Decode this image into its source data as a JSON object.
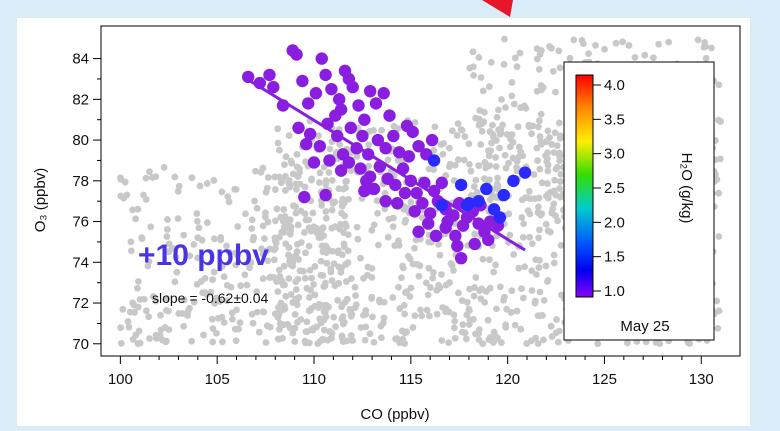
{
  "chart_data": {
    "type": "scatter",
    "xlabel": "CO (ppbv)",
    "ylabel": "O₃ (ppbv)",
    "xlim": [
      99,
      132
    ],
    "ylim": [
      69.4,
      85.6
    ],
    "xticks": [
      100,
      105,
      110,
      115,
      120,
      125,
      130
    ],
    "yticks": [
      70,
      72,
      74,
      76,
      78,
      80,
      82,
      84
    ],
    "grid": false,
    "annotations": {
      "increment": "+10 ppbv",
      "slope": "slope = -0.62±0.04",
      "date": "May 25"
    },
    "colorbar": {
      "label": "H₂O (g/kg)",
      "ticks": [
        "4.0",
        "3.5",
        "3.0",
        "2.5",
        "2.0",
        "1.5",
        "1.0"
      ],
      "range": [
        1.0,
        4.0
      ],
      "colors": [
        "#ff0000",
        "#ff8800",
        "#ffee00",
        "#33dd00",
        "#00cccc",
        "#0055ff",
        "#0000ee",
        "#8800ff"
      ]
    },
    "fit_line": {
      "color": "#8a1ee0",
      "points": [
        [
          106.7,
          82.9
        ],
        [
          120.9,
          74.6
        ]
      ]
    },
    "background_series": {
      "name": "",
      "color": "#c8c8c8",
      "description_level": "dense cloud of gray points",
      "regions": [
        {
          "x": [
            100,
            112
          ],
          "y": [
            70,
            79
          ]
        },
        {
          "x": [
            108,
            131
          ],
          "y": [
            70,
            81
          ]
        },
        {
          "x": [
            118,
            131
          ],
          "y": [
            77,
            85
          ]
        }
      ]
    },
    "series": [
      {
        "name": "",
        "h2o_gkg": 1.05,
        "color": "#8a1ee0",
        "points": [
          [
            106.6,
            83.1
          ],
          [
            107.2,
            82.8
          ],
          [
            107.7,
            83.2
          ],
          [
            107.9,
            82.6
          ],
          [
            108.4,
            81.7
          ],
          [
            108.9,
            84.4
          ],
          [
            109.1,
            84.2
          ],
          [
            109.4,
            82.9
          ],
          [
            109.7,
            81.8
          ],
          [
            110.1,
            82.3
          ],
          [
            110.4,
            84.0
          ],
          [
            110.6,
            83.2
          ],
          [
            110.9,
            82.5
          ],
          [
            111.1,
            81.2
          ],
          [
            111.3,
            82.0
          ],
          [
            111.6,
            83.4
          ],
          [
            111.8,
            83.0
          ],
          [
            112.0,
            82.6
          ],
          [
            111.4,
            81.5
          ],
          [
            112.3,
            81.7
          ],
          [
            112.6,
            81.0
          ],
          [
            112.9,
            82.4
          ],
          [
            113.2,
            81.8
          ],
          [
            113.6,
            82.3
          ],
          [
            113.9,
            81.2
          ],
          [
            109.2,
            80.6
          ],
          [
            109.8,
            80.3
          ],
          [
            110.3,
            79.7
          ],
          [
            110.7,
            80.8
          ],
          [
            111.2,
            80.2
          ],
          [
            111.5,
            79.3
          ],
          [
            111.9,
            80.6
          ],
          [
            112.2,
            79.6
          ],
          [
            112.5,
            80.2
          ],
          [
            112.8,
            79.3
          ],
          [
            113.3,
            80.0
          ],
          [
            113.7,
            79.6
          ],
          [
            114.1,
            80.2
          ],
          [
            114.4,
            79.4
          ],
          [
            114.8,
            80.7
          ],
          [
            115.1,
            80.4
          ],
          [
            115.4,
            79.7
          ],
          [
            115.8,
            79.3
          ],
          [
            116.1,
            80.0
          ],
          [
            109.6,
            79.8
          ],
          [
            110.0,
            78.9
          ],
          [
            110.8,
            79.0
          ],
          [
            111.4,
            78.5
          ],
          [
            111.8,
            78.9
          ],
          [
            112.4,
            78.6
          ],
          [
            112.9,
            78.2
          ],
          [
            113.4,
            78.7
          ],
          [
            113.8,
            78.1
          ],
          [
            114.2,
            77.8
          ],
          [
            114.6,
            78.6
          ],
          [
            115.0,
            78.0
          ],
          [
            115.3,
            77.4
          ],
          [
            115.7,
            77.9
          ],
          [
            116.2,
            77.5
          ],
          [
            116.6,
            77.9
          ],
          [
            109.5,
            77.2
          ],
          [
            110.6,
            77.3
          ],
          [
            112.6,
            77.5
          ],
          [
            113.1,
            77.6
          ],
          [
            113.7,
            77.0
          ],
          [
            114.3,
            76.9
          ],
          [
            114.7,
            77.4
          ],
          [
            115.2,
            76.5
          ],
          [
            115.6,
            76.9
          ],
          [
            116.0,
            76.4
          ],
          [
            116.4,
            77.0
          ],
          [
            116.8,
            76.6
          ],
          [
            117.2,
            76.3
          ],
          [
            117.5,
            76.9
          ],
          [
            117.9,
            76.2
          ],
          [
            118.2,
            76.5
          ],
          [
            118.5,
            75.9
          ],
          [
            118.8,
            75.5
          ],
          [
            119.1,
            76.0
          ],
          [
            119.5,
            75.8
          ],
          [
            115.4,
            75.5
          ],
          [
            115.9,
            75.9
          ],
          [
            116.3,
            75.3
          ],
          [
            116.8,
            75.7
          ],
          [
            117.3,
            75.3
          ],
          [
            117.7,
            75.8
          ],
          [
            117.4,
            74.8
          ],
          [
            117.6,
            74.2
          ],
          [
            118.3,
            74.9
          ],
          [
            119.0,
            75.1
          ],
          [
            112.7,
            78.0
          ],
          [
            114.9,
            79.2
          ],
          [
            116.9,
            76.0
          ],
          [
            118.6,
            76.8
          ]
        ]
      },
      {
        "name": "",
        "h2o_gkg": 1.4,
        "color": "#2a2aff",
        "points": [
          [
            116.2,
            79.0
          ],
          [
            117.6,
            77.8
          ],
          [
            118.5,
            77.0
          ],
          [
            118.9,
            77.6
          ],
          [
            119.3,
            76.6
          ],
          [
            119.8,
            77.3
          ],
          [
            120.3,
            78.0
          ],
          [
            120.9,
            78.4
          ],
          [
            118.0,
            76.9
          ],
          [
            119.6,
            76.2
          ],
          [
            116.6,
            76.8
          ],
          [
            117.9,
            76.8
          ]
        ]
      }
    ]
  }
}
